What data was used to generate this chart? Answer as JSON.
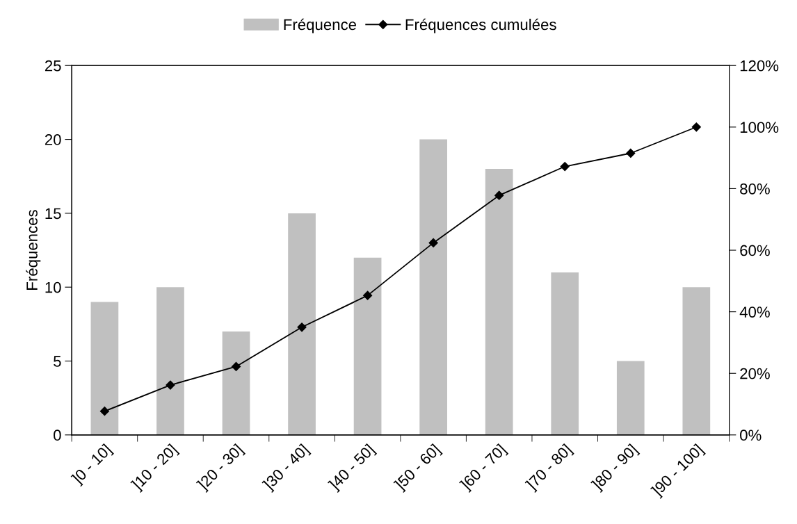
{
  "chart_data": {
    "type": "bar",
    "ylabel": "Fréquences",
    "categories": [
      "]0 - 10]",
      "]10 - 20]",
      "]20 - 30]",
      "]30 - 40]",
      "]40 - 50]",
      "]50 - 60]",
      "]60 - 70]",
      "]70 - 80]",
      "]80 - 90]",
      "]90 - 100]"
    ],
    "series": [
      {
        "name": "Fréquence",
        "color": "#c0c0c0",
        "values": [
          9,
          10,
          7,
          15,
          12,
          20,
          18,
          11,
          5,
          10
        ]
      },
      {
        "name": "Fréquences cumulées",
        "type": "line",
        "axis": "y2",
        "color": "#000000",
        "marker": "diamond",
        "values": [
          7.7,
          16.2,
          22.2,
          35.0,
          45.3,
          62.4,
          77.8,
          87.2,
          91.5,
          100
        ]
      }
    ],
    "ylim": [
      0,
      25
    ],
    "yticks": [
      0,
      5,
      10,
      15,
      20,
      25
    ],
    "y2lim": [
      0,
      120
    ],
    "y2ticks": [
      {
        "value": 0,
        "label": "0%"
      },
      {
        "value": 20,
        "label": "20%"
      },
      {
        "value": 40,
        "label": "40%"
      },
      {
        "value": 60,
        "label": "60%"
      },
      {
        "value": 80,
        "label": "80%"
      },
      {
        "value": 100,
        "label": "100%"
      },
      {
        "value": 120,
        "label": "120%"
      }
    ],
    "legend": "top",
    "grid": false
  }
}
